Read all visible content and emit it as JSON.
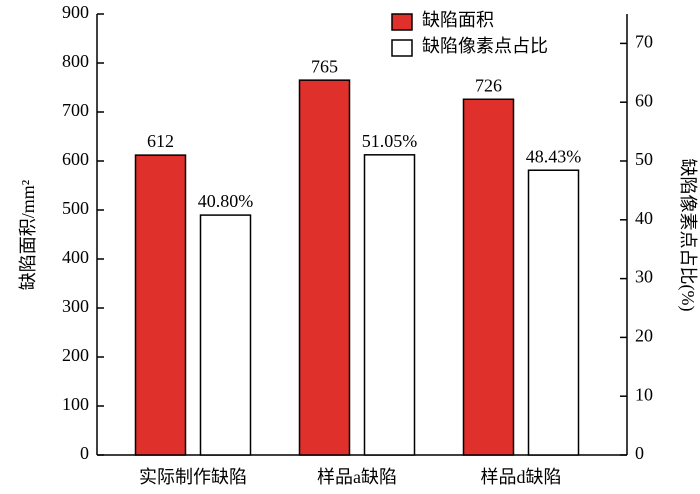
{
  "chart_data": {
    "type": "bar",
    "categories": [
      "实际制作缺陷",
      "样品a缺陷",
      "样品d缺陷"
    ],
    "series": [
      {
        "name": "缺陷面积",
        "color": "#e0302c",
        "values": [
          612,
          765,
          726
        ]
      },
      {
        "name": "缺陷像素点占比",
        "color": "#ffffff",
        "axis": "y2",
        "values": [
          40.8,
          51.05,
          48.43
        ],
        "value_labels": [
          "40.80%",
          "51.05%",
          "48.43%"
        ]
      }
    ],
    "y_label": "缺陷面积/mm²",
    "y2_label": "缺陷像素点占比(%)",
    "ylim": [
      0,
      900
    ],
    "yticks": [
      0,
      100,
      200,
      300,
      400,
      500,
      600,
      700,
      800,
      900
    ],
    "y2lim": [
      0,
      75
    ],
    "y2ticks": [
      0,
      10,
      20,
      30,
      40,
      50,
      60,
      70
    ],
    "legend": "upper right",
    "grid": false
  }
}
